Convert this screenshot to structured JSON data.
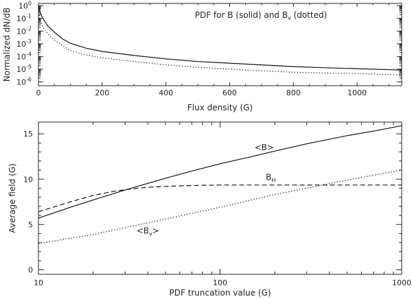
{
  "chart_data": [
    {
      "type": "line",
      "title": "PDF for B (solid) and B_v (dotted)",
      "title_parts": {
        "main": "PDF for B (solid) and B",
        "sub": "v",
        "tail": " (dotted)"
      },
      "xlabel": "Flux density (G)",
      "ylabel": "Normalized dN/dB",
      "xlim": [
        0,
        1140
      ],
      "ylim_log": [
        5e-07,
        1.5
      ],
      "yscale": "log",
      "x_ticks": [
        0,
        200,
        400,
        600,
        800,
        1000
      ],
      "x_tick_labels": [
        "0",
        "200",
        "400",
        "600",
        "800",
        "1000"
      ],
      "y_ticks": [
        1,
        0.1,
        0.01,
        0.001,
        0.0001,
        1e-05,
        1e-06
      ],
      "y_tick_labels": [
        {
          "base": "10",
          "exp": "0"
        },
        {
          "base": "10",
          "exp": "-1"
        },
        {
          "base": "10",
          "exp": "-2"
        },
        {
          "base": "10",
          "exp": "-3"
        },
        {
          "base": "10",
          "exp": "-4"
        },
        {
          "base": "10",
          "exp": "-5"
        },
        {
          "base": "10",
          "exp": "-6"
        }
      ],
      "series": [
        {
          "style": "solid",
          "x": [
            1,
            5,
            10,
            20,
            30,
            50,
            75,
            100,
            150,
            200,
            300,
            400,
            500,
            600,
            700,
            800,
            900,
            1000,
            1140
          ],
          "y": [
            0.7,
            0.3,
            0.15,
            0.055,
            0.025,
            0.008,
            0.0025,
            0.0011,
            0.00045,
            0.00025,
            0.00012,
            6.5e-05,
            4e-05,
            3e-05,
            2.2e-05,
            1.6e-05,
            1.3e-05,
            1.1e-05,
            8.5e-06
          ]
        },
        {
          "style": "dotted",
          "x": [
            1,
            5,
            10,
            20,
            30,
            50,
            75,
            100,
            150,
            200,
            300,
            400,
            500,
            600,
            700,
            800,
            900,
            1000,
            1140
          ],
          "y": [
            0.3,
            0.08,
            0.035,
            0.012,
            0.006,
            0.002,
            0.0007,
            0.0003,
            0.00013,
            8e-05,
            4e-05,
            2.2e-05,
            1.4e-05,
            1e-05,
            7.5e-06,
            5.8e-06,
            5e-06,
            4.5e-06,
            3.5e-06
          ]
        }
      ]
    },
    {
      "type": "line",
      "xlabel": "PDF truncation value (G)",
      "ylabel": "Average field (G)",
      "xscale": "log",
      "xlim": [
        10,
        1000
      ],
      "ylim": [
        -0.5,
        16.3
      ],
      "x_ticks": [
        10,
        100,
        1000
      ],
      "x_tick_labels": [
        "10",
        "100",
        "1000"
      ],
      "y_ticks": [
        0,
        5,
        10,
        15
      ],
      "y_tick_labels": [
        "0",
        "5",
        "10",
        "15"
      ],
      "annotations": [
        {
          "text": "<B>",
          "x": 175,
          "y": 13.2
        },
        {
          "base": "B",
          "sub": "H",
          "x": 190,
          "y": 9.9
        },
        {
          "text": "<B",
          "sub": "v",
          "tail": ">",
          "x": 40,
          "y": 4.0
        }
      ],
      "series": [
        {
          "style": "solid",
          "x": [
            10,
            15,
            20,
            30,
            50,
            70,
            100,
            150,
            200,
            300,
            500,
            700,
            1000
          ],
          "y": [
            5.7,
            6.9,
            7.7,
            8.8,
            10.1,
            10.9,
            11.7,
            12.5,
            13.1,
            13.9,
            14.8,
            15.3,
            15.9
          ]
        },
        {
          "style": "dashed",
          "x": [
            10,
            15,
            20,
            25,
            30,
            40,
            50,
            70,
            100,
            150,
            200,
            300,
            500,
            700,
            1000
          ],
          "y": [
            6.4,
            7.5,
            8.2,
            8.6,
            8.85,
            9.1,
            9.2,
            9.3,
            9.35,
            9.35,
            9.35,
            9.35,
            9.35,
            9.35,
            9.35
          ]
        },
        {
          "style": "dotted",
          "x": [
            10,
            20,
            50,
            100,
            200,
            500,
            1000
          ],
          "y": [
            2.9,
            3.9,
            5.6,
            6.9,
            8.3,
            9.9,
            11.0
          ]
        }
      ]
    }
  ]
}
